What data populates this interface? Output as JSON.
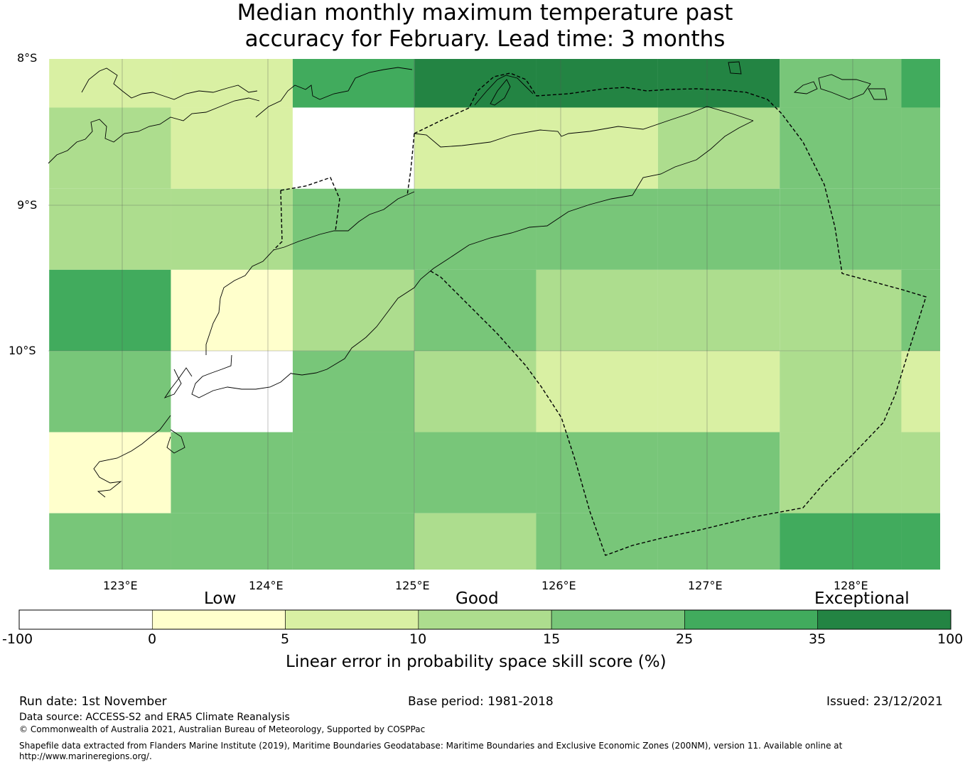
{
  "title": {
    "line1": "Median monthly maximum temperature past",
    "line2": "accuracy for February. Lead time: 3 months"
  },
  "map": {
    "lat_labels": [
      "8°S",
      "9°S",
      "10°S"
    ],
    "lon_labels": [
      "123°E",
      "124°E",
      "125°E",
      "126°E",
      "127°E",
      "128°E"
    ],
    "grid": {
      "lon_edges": [
        122.5,
        123.333,
        124.167,
        125.0,
        125.833,
        126.667,
        127.5,
        128.333,
        128.6
      ],
      "lat_edges": [
        -8.0,
        -8.333,
        -8.889,
        -9.444,
        -10.0,
        -10.556,
        -11.111,
        -11.5
      ],
      "cells": [
        [
          7,
          7,
          30,
          40,
          40,
          40,
          20,
          30
        ],
        [
          12,
          7,
          -5,
          7,
          7,
          12,
          20,
          20
        ],
        [
          12,
          12,
          20,
          20,
          20,
          20,
          20,
          20
        ],
        [
          30,
          2,
          12,
          20,
          12,
          12,
          12,
          20
        ],
        [
          20,
          -5,
          20,
          12,
          7,
          7,
          12,
          7
        ],
        [
          2,
          20,
          20,
          20,
          20,
          20,
          12,
          12
        ],
        [
          20,
          20,
          20,
          12,
          20,
          20,
          30,
          30
        ]
      ]
    },
    "colors": {
      "below0": "#ffffff",
      "c0_5": "#ffffcc",
      "c5_10": "#d9f0a3",
      "c10_15": "#addd8e",
      "c15_25": "#78c679",
      "c25_35": "#41ab5d",
      "c35_100": "#238443"
    }
  },
  "colorbar": {
    "categories": [
      "Low",
      "Good",
      "Exceptional"
    ],
    "ticks": [
      "-100",
      "0",
      "5",
      "10",
      "15",
      "25",
      "35",
      "100"
    ],
    "bins": [
      "#ffffff",
      "#ffffcc",
      "#d9f0a3",
      "#addd8e",
      "#78c679",
      "#41ab5d",
      "#238443"
    ],
    "label": "Linear error in probability space skill score (%)"
  },
  "footer": {
    "run_date": "Run date: 1st November",
    "base_period": "Base period: 1981-2018",
    "issued": "Issued: 23/12/2021",
    "data_source": "Data source: ACCESS-S2 and ERA5 Climate Reanalysis",
    "copyright": "© Commonwealth of Australia 2021, Australian Bureau of Meteorology, Supported by COSPPac",
    "shapefile_line1": "Shapefile data extracted from Flanders Marine Institute (2019), Maritime Boundaries Geodatabase: Maritime Boundaries and Exclusive Economic Zones (200NM), version 11. Available online at",
    "shapefile_line2": "http://www.marineregions.org/."
  }
}
